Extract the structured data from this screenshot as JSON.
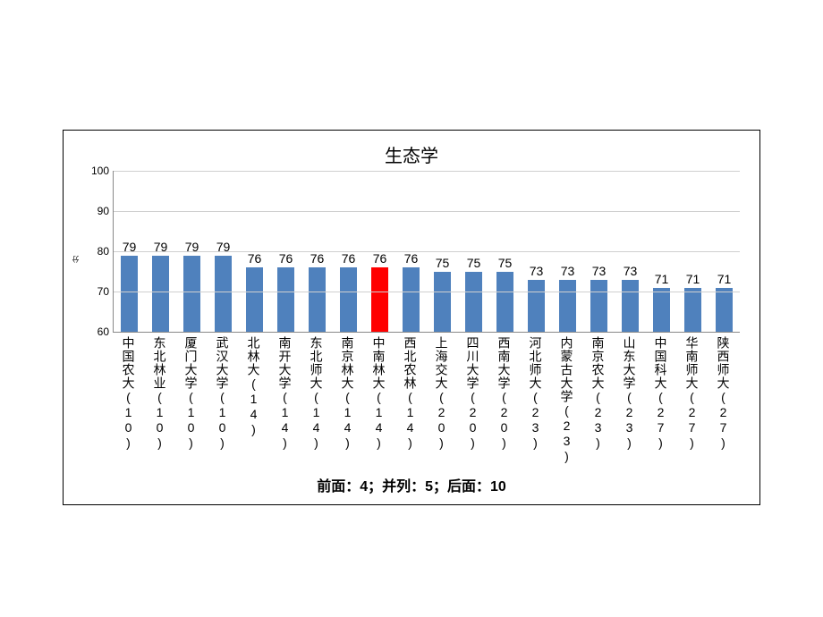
{
  "chart": {
    "type": "bar",
    "title": "生态学",
    "title_fontsize": 20,
    "y_axis_label": "分",
    "ylim_min": 60,
    "ylim_max": 100,
    "ytick_step": 10,
    "ticks": [
      60,
      70,
      80,
      90,
      100
    ],
    "grid_color": "#cfcfcf",
    "axis_color": "#888888",
    "background_color": "#ffffff",
    "bar_color_default": "#4f81bd",
    "bar_color_highlight": "#ff0000",
    "bar_width_ratio": 0.55,
    "label_fontsize": 14,
    "value_fontsize": 14,
    "categories": [
      "中国农大(10)",
      "东北林业(10)",
      "厦门大学(10)",
      "武汉大学(10)",
      "北林大(14)",
      "南开大学(14)",
      "东北师大(14)",
      "南京林大(14)",
      "中南林大(14)",
      "西北农林(14)",
      "上海交大(20)",
      "四川大学(20)",
      "西南大学(20)",
      "河北师大(23)",
      "内蒙古大学(23)",
      "南京农大(23)",
      "山东大学(23)",
      "中国科大(27)",
      "华南师大(27)",
      "陕西师大(27)"
    ],
    "values": [
      79,
      79,
      79,
      79,
      76,
      76,
      76,
      76,
      76,
      76,
      75,
      75,
      75,
      73,
      73,
      73,
      73,
      71,
      71,
      71
    ],
    "highlight_index": 8,
    "caption": "前面：4；并列：5；后面：10"
  }
}
